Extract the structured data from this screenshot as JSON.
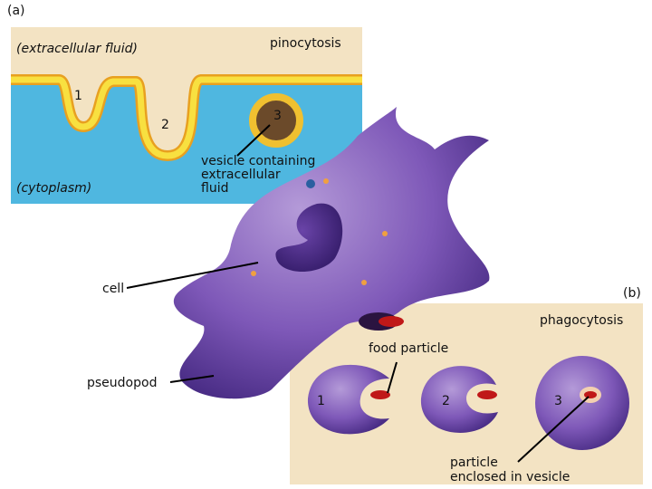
{
  "panel_a": {
    "label": "(a)",
    "title": "pinocytosis",
    "outside": "(extracellular fluid)",
    "inside": "(cytoplasm)",
    "steps": [
      "1",
      "2",
      "3"
    ],
    "callout": [
      "vesicle containing",
      "extracellular",
      "fluid"
    ]
  },
  "cell_labels": {
    "cell": "cell",
    "pseudopod": "pseudopod"
  },
  "panel_b": {
    "label": "(b)",
    "title": "phagocytosis",
    "food": "food particle",
    "steps": [
      "1",
      "2",
      "3"
    ],
    "callout": [
      "particle",
      "enclosed in vesicle"
    ]
  }
}
